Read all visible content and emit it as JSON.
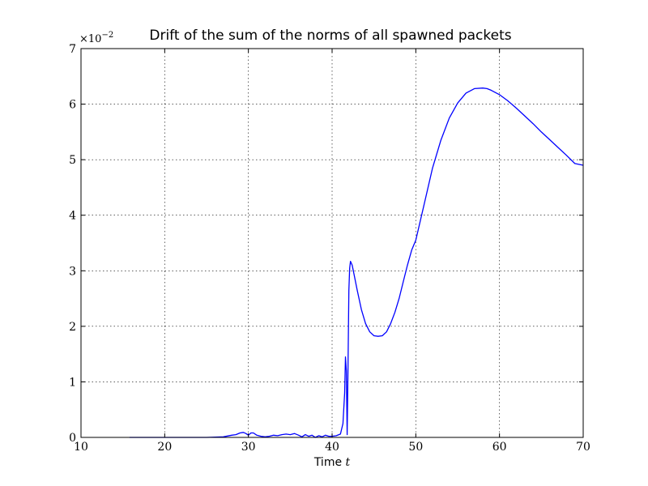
{
  "chart_data": {
    "type": "line",
    "title": "Drift of the sum of the norms of all spawned packets",
    "xlabel": "Time",
    "xlabel_var": "t",
    "ylabel": "",
    "y_offset_base": "×10",
    "y_offset_exp": "−2",
    "xlim": [
      10,
      70
    ],
    "ylim": [
      0,
      7
    ],
    "xticks": [
      10,
      20,
      30,
      40,
      50,
      60,
      70
    ],
    "yticks": [
      0,
      1,
      2,
      3,
      4,
      5,
      6,
      7
    ],
    "xtick_labels": [
      "10",
      "20",
      "30",
      "40",
      "50",
      "60",
      "70"
    ],
    "ytick_labels": [
      "0",
      "1",
      "2",
      "3",
      "4",
      "5",
      "6",
      "7"
    ],
    "grid": true,
    "legend": false,
    "series": [
      {
        "color": "#0000ff",
        "x": [
          15.8,
          20,
          25,
          27,
          28,
          28.5,
          29,
          29.4,
          29.7,
          30,
          30.3,
          30.6,
          31,
          31.5,
          32,
          32.5,
          33,
          33.5,
          34,
          34.5,
          35,
          35.5,
          36,
          36.4,
          36.8,
          37.2,
          37.6,
          38,
          38.4,
          38.8,
          39.2,
          39.6,
          40,
          40.5,
          41,
          41.3,
          41.5,
          41.6,
          41.7,
          41.75,
          41.8,
          41.9,
          42.0,
          42.1,
          42.2,
          42.4,
          42.6,
          43,
          43.5,
          44,
          44.5,
          45,
          45.5,
          46,
          46.5,
          47,
          47.5,
          48,
          48.5,
          49,
          49.5,
          50,
          51,
          52,
          53,
          54,
          55,
          56,
          57,
          58,
          58.5,
          59,
          60,
          61,
          62,
          63,
          64,
          65,
          66,
          67,
          68,
          69,
          70
        ],
        "y": [
          0.0,
          0.0,
          0.0,
          0.01,
          0.04,
          0.05,
          0.08,
          0.09,
          0.07,
          0.04,
          0.08,
          0.08,
          0.04,
          0.02,
          0.01,
          0.02,
          0.04,
          0.03,
          0.05,
          0.06,
          0.05,
          0.07,
          0.04,
          0.01,
          0.05,
          0.02,
          0.04,
          0.0,
          0.03,
          0.01,
          0.04,
          0.02,
          0.02,
          0.03,
          0.06,
          0.25,
          0.8,
          1.45,
          1.2,
          0.6,
          0.05,
          1.2,
          2.65,
          3.05,
          3.17,
          3.1,
          2.95,
          2.65,
          2.3,
          2.05,
          1.9,
          1.83,
          1.82,
          1.83,
          1.9,
          2.05,
          2.25,
          2.5,
          2.8,
          3.1,
          3.37,
          3.55,
          4.2,
          4.85,
          5.35,
          5.75,
          6.02,
          6.2,
          6.28,
          6.29,
          6.28,
          6.25,
          6.17,
          6.06,
          5.93,
          5.79,
          5.65,
          5.5,
          5.36,
          5.22,
          5.08,
          4.93,
          4.9
        ]
      }
    ]
  }
}
